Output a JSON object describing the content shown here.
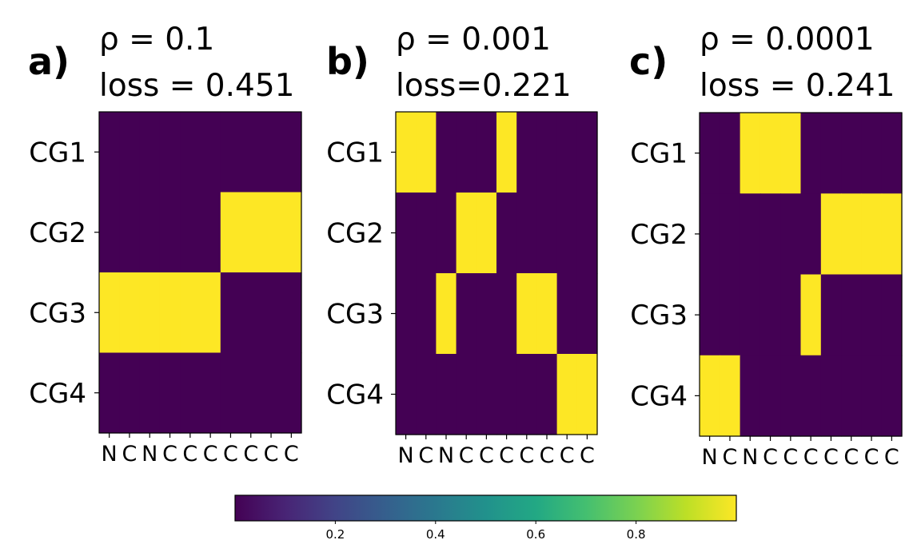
{
  "chart_data": {
    "type": "heatmap",
    "colormap": "viridis",
    "panels": [
      {
        "letter": "a)",
        "title_line1": "ρ = 0.1",
        "title_line2": "loss = 0.451",
        "rows": [
          "CG1",
          "CG2",
          "CG3",
          "CG4"
        ],
        "columns": [
          "N",
          "C",
          "N",
          "C",
          "C",
          "C",
          "C",
          "C",
          "C",
          "C"
        ],
        "values": [
          [
            0,
            0,
            0,
            0,
            0,
            0,
            0,
            0,
            0,
            0
          ],
          [
            0,
            0,
            0,
            0,
            0,
            0,
            1,
            1,
            1,
            1
          ],
          [
            1,
            1,
            1,
            1,
            1,
            1,
            0,
            0,
            0,
            0
          ],
          [
            0,
            0,
            0,
            0,
            0,
            0,
            0,
            0,
            0,
            0
          ]
        ]
      },
      {
        "letter": "b)",
        "title_line1": "ρ = 0.001",
        "title_line2": "loss=0.221",
        "rows": [
          "CG1",
          "CG2",
          "CG3",
          "CG4"
        ],
        "columns": [
          "N",
          "C",
          "N",
          "C",
          "C",
          "C",
          "C",
          "C",
          "C",
          "C"
        ],
        "values": [
          [
            1,
            1,
            0,
            0,
            0,
            1,
            0,
            0,
            0,
            0
          ],
          [
            0,
            0,
            0,
            1,
            1,
            0,
            0,
            0,
            0,
            0
          ],
          [
            0,
            0,
            1,
            0,
            0,
            0,
            1,
            1,
            0,
            0
          ],
          [
            0,
            0,
            0,
            0,
            0,
            0,
            0,
            0,
            1,
            1
          ]
        ]
      },
      {
        "letter": "c)",
        "title_line1": "ρ = 0.0001",
        "title_line2": "loss = 0.241",
        "rows": [
          "CG1",
          "CG2",
          "CG3",
          "CG4"
        ],
        "columns": [
          "N",
          "C",
          "N",
          "C",
          "C",
          "C",
          "C",
          "C",
          "C",
          "C"
        ],
        "values": [
          [
            0,
            0,
            1,
            1,
            1,
            0,
            0,
            0,
            0,
            0
          ],
          [
            0,
            0,
            0,
            0,
            0,
            0,
            1,
            1,
            1,
            1
          ],
          [
            0,
            0,
            0,
            0,
            0,
            1,
            0,
            0,
            0,
            0
          ],
          [
            1,
            1,
            0,
            0,
            0,
            0,
            0,
            0,
            0,
            0
          ]
        ]
      }
    ],
    "colorbar": {
      "range": [
        0,
        1
      ],
      "ticks": [
        "0.2",
        "0.4",
        "0.6",
        "0.8"
      ],
      "tick_values": [
        0.2,
        0.4,
        0.6,
        0.8
      ],
      "orientation": "horizontal"
    }
  }
}
